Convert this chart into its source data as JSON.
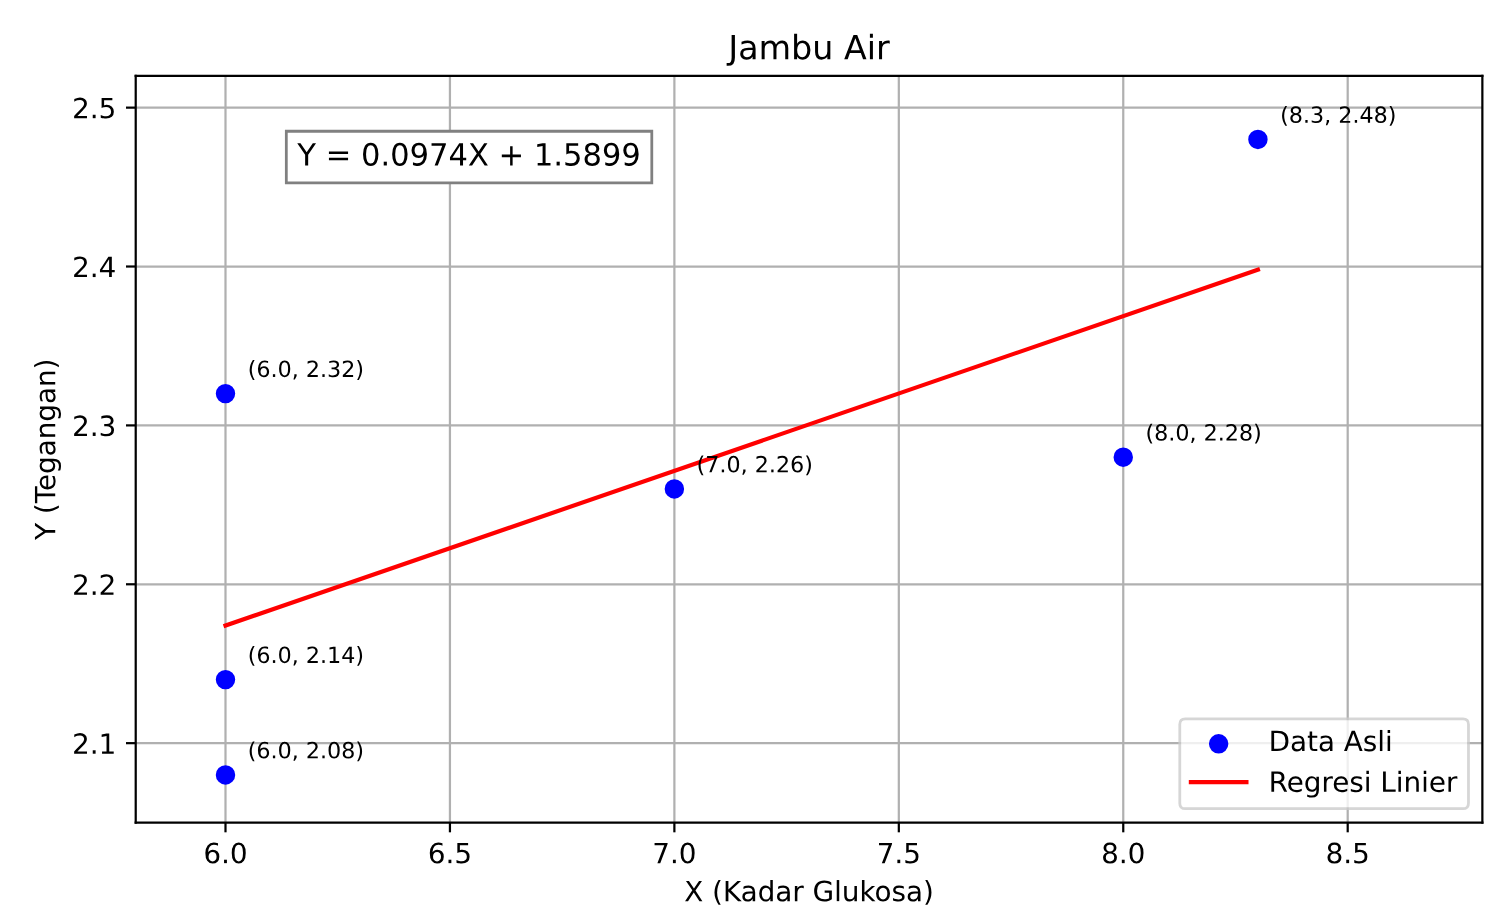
{
  "chart_data": {
    "type": "scatter",
    "title": "Jambu Air",
    "xlabel": "X (Kadar Glukosa)",
    "ylabel": "Y (Tegangan)",
    "series": [
      {
        "name": "Data Asli",
        "type": "scatter",
        "color": "#0000ff",
        "marker": "circle",
        "x": [
          6.0,
          6.0,
          6.0,
          7.0,
          8.0,
          8.3
        ],
        "values": [
          2.32,
          2.14,
          2.08,
          2.26,
          2.28,
          2.48
        ]
      },
      {
        "name": "Regresi Linier",
        "type": "line",
        "color": "#ff0000",
        "marker": "none",
        "line_style": "solid",
        "x": [
          6.0,
          8.3
        ],
        "values": [
          2.174,
          2.398
        ]
      }
    ],
    "annotations": [
      "Y = 0.0974X + 1.5899",
      {
        "text": "(6.0, 2.32)",
        "x": 6.0,
        "y": 2.32
      },
      {
        "text": "(6.0, 2.14)",
        "x": 6.0,
        "y": 2.14
      },
      {
        "text": "(6.0, 2.08)",
        "x": 6.0,
        "y": 2.08
      },
      {
        "text": "(7.0, 2.26)",
        "x": 7.0,
        "y": 2.26
      },
      {
        "text": "(8.0, 2.28)",
        "x": 8.0,
        "y": 2.28
      },
      {
        "text": "(8.3, 2.48)",
        "x": 8.3,
        "y": 2.48
      }
    ],
    "xlim": [
      5.8,
      8.8
    ],
    "ylim": [
      2.05,
      2.52
    ],
    "xticks": [
      {
        "value": 6,
        "label": "6.0"
      },
      6.5,
      {
        "value": 7,
        "label": "7.0"
      },
      7.5,
      {
        "value": 8,
        "label": "8.0"
      },
      8.5
    ],
    "yticks": [
      2.1,
      2.2,
      2.3,
      2.4,
      2.5
    ],
    "grid": true,
    "legend": "bottom right"
  }
}
